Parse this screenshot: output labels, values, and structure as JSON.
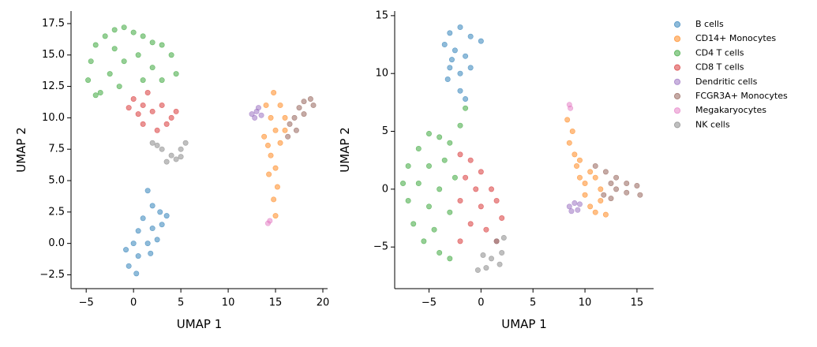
{
  "chart_data": [
    {
      "type": "scatter",
      "x_label": "UMAP 1",
      "y_label": "UMAP 2",
      "xlim": [
        -6.6,
        20.5
      ],
      "ylim": [
        -3.6,
        18.5
      ],
      "xticks": [
        {
          "value": -5,
          "label": "−5"
        },
        0,
        5,
        10,
        15,
        20
      ],
      "yticks": [
        {
          "value": -2.5,
          "label": "−2.5"
        },
        {
          "value": 0,
          "label": "0.0"
        },
        2.5,
        {
          "value": 5,
          "label": "5.0"
        },
        7.5,
        {
          "value": 10,
          "label": "10.0"
        },
        12.5,
        {
          "value": 15,
          "label": "15.0"
        },
        17.5
      ],
      "series": [
        {
          "color": "#1f77b4",
          "x": [
            1.5,
            2,
            2.8,
            1,
            0.5,
            2,
            3,
            1.5,
            0,
            -0.8,
            0.5,
            1.8,
            -0.5,
            0.3,
            2.5,
            3.5
          ],
          "values": [
            4.2,
            3,
            2.5,
            2,
            1,
            1.2,
            1.5,
            0,
            0,
            -0.5,
            -1,
            -0.8,
            -1.8,
            -2.4,
            0.3,
            2.2
          ]
        },
        {
          "color": "#ff7f0e",
          "x": [
            14.8,
            14,
            15.5,
            16,
            14.5,
            15,
            13.8,
            15.5,
            14.5,
            15,
            14.3,
            15.2,
            14.8,
            15,
            14.2,
            16
          ],
          "values": [
            12,
            11,
            11,
            10,
            10,
            9,
            8.5,
            8,
            7,
            6,
            5.5,
            4.5,
            3.5,
            2.2,
            7.8,
            9
          ]
        },
        {
          "color": "#2ca02c",
          "x": [
            -4.5,
            -4,
            -3,
            -2,
            -1,
            0,
            1,
            2,
            3,
            4,
            4.5,
            -4.8,
            -3.5,
            -2.5,
            -1,
            0.5,
            2,
            3,
            -1.5,
            -4,
            1,
            -2
          ],
          "values": [
            14.5,
            15.8,
            16.5,
            17,
            17.2,
            16.8,
            16.5,
            16,
            15.8,
            15,
            13.5,
            13,
            12,
            13.5,
            14.5,
            15,
            14,
            13,
            12.5,
            11.8,
            13,
            15.5
          ]
        },
        {
          "color": "#d62728",
          "x": [
            0,
            1,
            2,
            3,
            4,
            1,
            2.5,
            0.5,
            3.5,
            1.5,
            -0.5,
            4.5
          ],
          "values": [
            11.5,
            11,
            10.5,
            11,
            10,
            9.5,
            9,
            10.3,
            9.5,
            12,
            10.8,
            10.5
          ]
        },
        {
          "color": "#9467bd",
          "x": [
            12.5,
            13,
            13.5,
            12.8,
            13.2
          ],
          "values": [
            10.3,
            10.5,
            10.2,
            10,
            10.8
          ]
        },
        {
          "color": "#8c564b",
          "x": [
            16.5,
            17,
            17.5,
            18,
            18.7,
            19,
            18,
            17.2,
            16.3
          ],
          "values": [
            9.5,
            10,
            10.8,
            11.3,
            11.5,
            11,
            10.3,
            9,
            8.5
          ]
        },
        {
          "color": "#e377c2",
          "x": [
            14.2,
            14.4
          ],
          "values": [
            1.6,
            1.8
          ]
        },
        {
          "color": "#7f7f7f",
          "x": [
            2,
            3,
            4,
            5,
            5.5,
            4.5,
            3.5,
            2.5,
            5
          ],
          "values": [
            8,
            7.5,
            7,
            7.5,
            8,
            6.7,
            6.5,
            7.8,
            6.9
          ]
        }
      ]
    },
    {
      "type": "scatter",
      "x_label": "UMAP 1",
      "y_label": "UMAP 2",
      "xlim": [
        -8.3,
        16.6
      ],
      "ylim": [
        -8.6,
        15.4
      ],
      "xticks": [
        {
          "value": -5,
          "label": "−5"
        },
        0,
        5,
        10,
        15
      ],
      "yticks": [
        {
          "value": -5,
          "label": "−5"
        },
        0,
        5,
        10,
        15
      ],
      "series": [
        {
          "name": "B cells",
          "color": "#1f77b4",
          "x": [
            -2,
            -3,
            -1,
            0,
            -3.5,
            -2.5,
            -1.5,
            -3,
            -2,
            -1,
            -3.2,
            -2,
            -1.5,
            -2.8
          ],
          "values": [
            14,
            13.5,
            13.2,
            12.8,
            12.5,
            12,
            11.5,
            10.5,
            10,
            10.5,
            9.5,
            8.5,
            7.8,
            11.2
          ]
        },
        {
          "name": "CD14+ Monocytes",
          "color": "#ff7f0e",
          "x": [
            8.3,
            8.8,
            8.5,
            9,
            9.2,
            9.5,
            10,
            10,
            10.5,
            11,
            11.5,
            11.5,
            10.5,
            9.5,
            12,
            11
          ],
          "values": [
            6,
            5,
            4,
            3,
            2,
            1,
            0.5,
            -0.5,
            -1.5,
            -2,
            -1,
            0,
            1.5,
            2.5,
            -2.2,
            1
          ]
        },
        {
          "name": "CD4 T cells",
          "color": "#2ca02c",
          "x": [
            -5,
            -4,
            -6,
            -7,
            -7.5,
            -7,
            -6.5,
            -5.5,
            -4,
            -3,
            -5,
            -4,
            -5,
            -3.5,
            -3,
            -4.5,
            -6,
            -2.5,
            -3,
            -2,
            -1.5
          ],
          "values": [
            4.8,
            4.5,
            3.5,
            2,
            0.5,
            -1,
            -3,
            -4.5,
            -5.5,
            -6,
            2,
            0,
            -1.5,
            2.5,
            -2,
            -3.5,
            0.5,
            1,
            4,
            5.5,
            7
          ]
        },
        {
          "name": "CD8 T cells",
          "color": "#d62728",
          "x": [
            -2,
            -1,
            0,
            -1.5,
            -0.5,
            1,
            -2,
            0,
            1.5,
            -1,
            0.5,
            1.5,
            -2,
            2
          ],
          "values": [
            3,
            2.5,
            1.5,
            1,
            0,
            0,
            -1,
            -1.5,
            -1,
            -3,
            -3.5,
            -4.5,
            -4.5,
            -2.5
          ]
        },
        {
          "name": "Dendritic cells",
          "color": "#9467bd",
          "x": [
            8.5,
            9,
            9.3,
            8.7,
            9.5
          ],
          "values": [
            -1.5,
            -1.2,
            -1.8,
            -1.9,
            -1.3
          ]
        },
        {
          "name": "FCGR3A+ Monocytes",
          "color": "#8c564b",
          "x": [
            11,
            12,
            12.5,
            13,
            14,
            15,
            15.3,
            14,
            13,
            11.8,
            12.5
          ],
          "values": [
            2,
            1.5,
            0.5,
            0,
            0.5,
            0.3,
            -0.5,
            -0.3,
            1,
            -0.5,
            -0.8
          ]
        },
        {
          "name": "Megakaryocytes",
          "color": "#e377c2",
          "x": [
            8.5,
            8.6
          ],
          "values": [
            7.3,
            7
          ]
        },
        {
          "name": "NK cells",
          "color": "#7f7f7f",
          "x": [
            1.5,
            2,
            1,
            0.5,
            -0.3,
            1.8,
            2.2,
            0.2
          ],
          "values": [
            -4.5,
            -5.5,
            -6,
            -6.8,
            -7,
            -6.5,
            -4.2,
            -5.7
          ]
        }
      ]
    }
  ]
}
